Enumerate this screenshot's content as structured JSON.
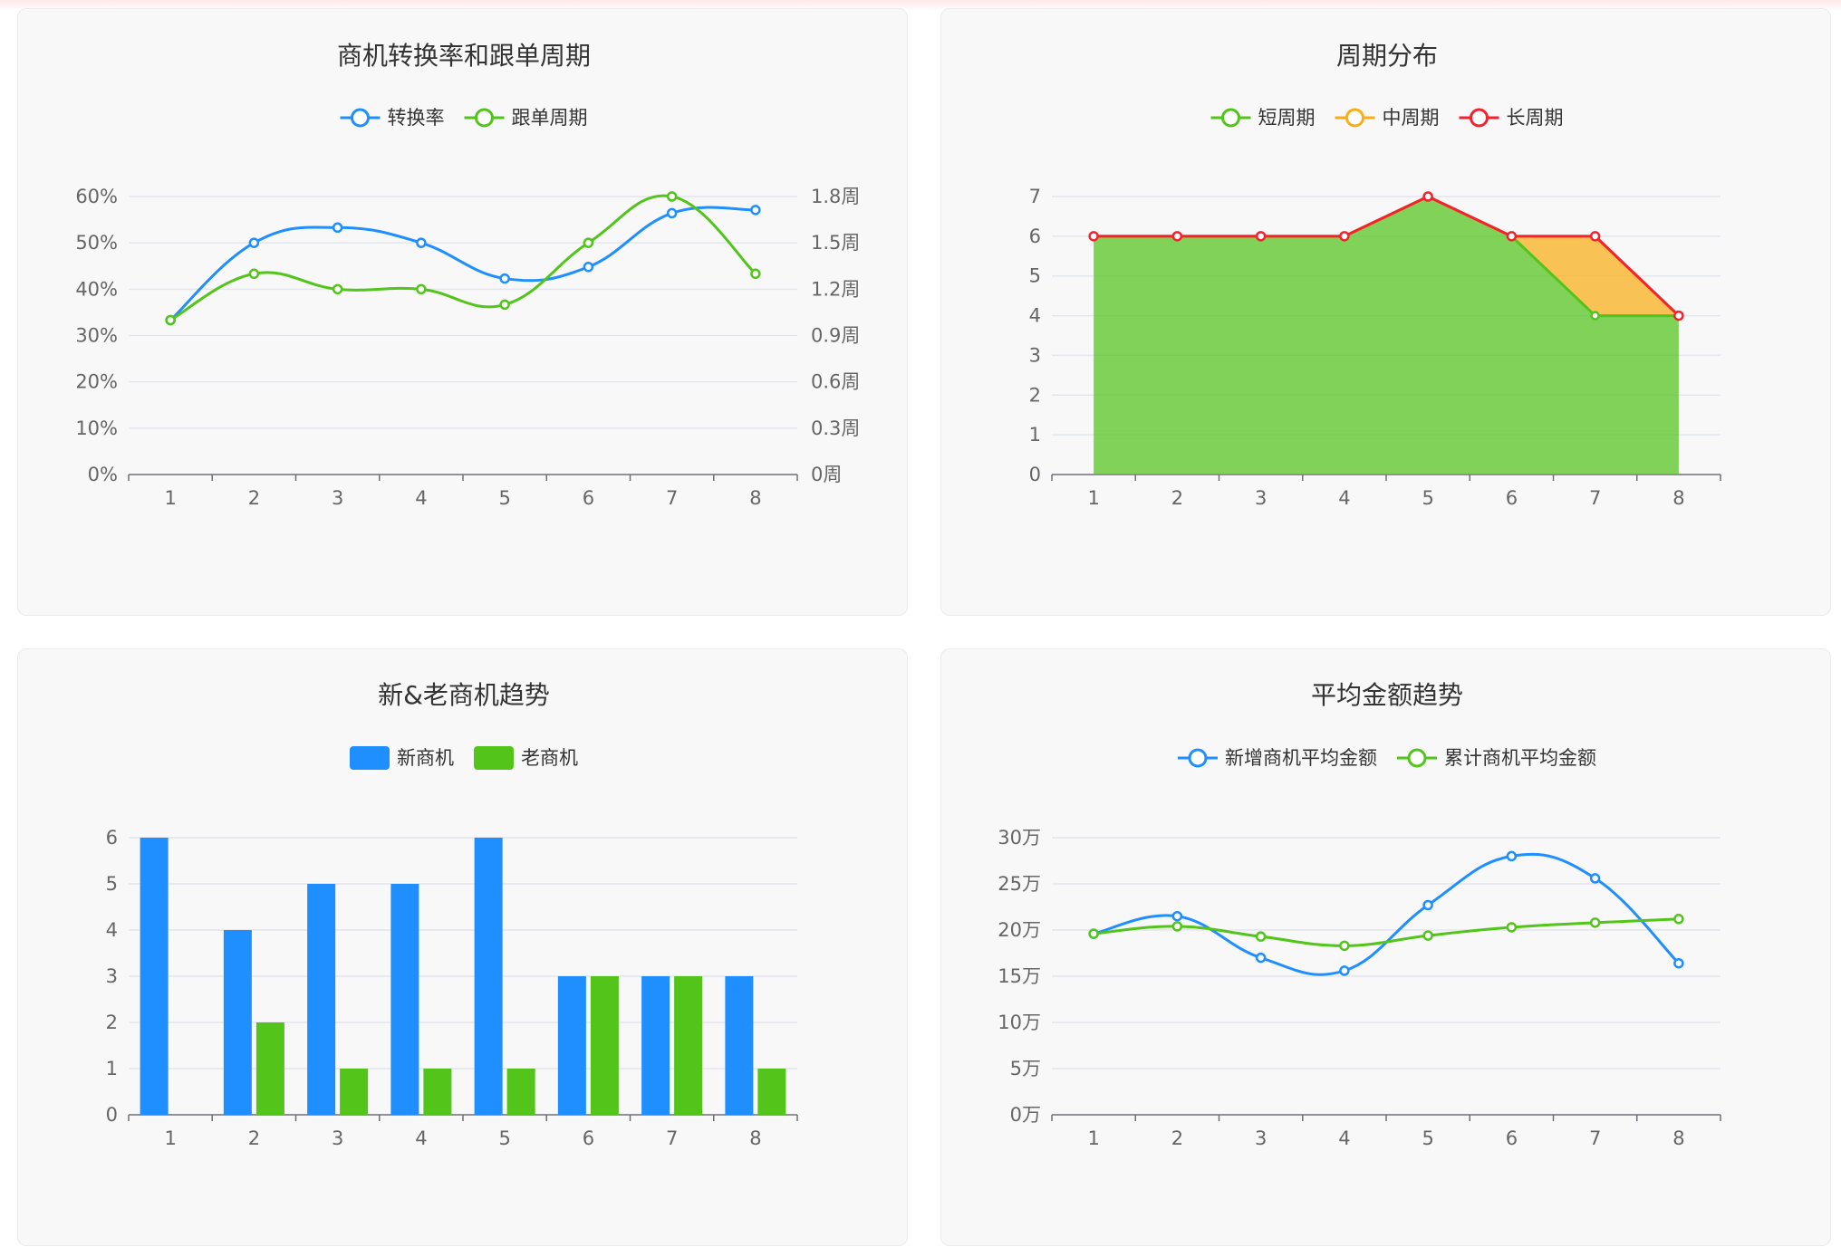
{
  "chart_data": [
    {
      "id": "c1",
      "type": "line",
      "smooth": true,
      "title": "商机转换率和跟单周期",
      "x": [
        "1",
        "2",
        "3",
        "4",
        "5",
        "6",
        "7",
        "8"
      ],
      "y_left": {
        "ticks": [
          "0%",
          "10%",
          "20%",
          "30%",
          "40%",
          "50%",
          "60%"
        ],
        "range": [
          0,
          60
        ]
      },
      "y_right": {
        "ticks": [
          "0周",
          "0.3周",
          "0.6周",
          "0.9周",
          "1.2周",
          "1.5周",
          "1.8周"
        ],
        "range": [
          0,
          1.8
        ]
      },
      "series": [
        {
          "name": "转换率",
          "color": "#1f8fff",
          "axis": "left",
          "values": [
            33.3,
            50,
            53.3,
            50,
            42.3,
            44.8,
            56.4,
            57.1
          ]
        },
        {
          "name": "跟单周期",
          "color": "#52c41a",
          "axis": "right",
          "values": [
            1.0,
            1.3,
            1.2,
            1.2,
            1.1,
            1.5,
            1.8,
            1.3
          ]
        }
      ],
      "legend": "top-center",
      "grid": true
    },
    {
      "id": "c2",
      "type": "area",
      "stacked": true,
      "title": "周期分布",
      "x": [
        "1",
        "2",
        "3",
        "4",
        "5",
        "6",
        "7",
        "8"
      ],
      "y": {
        "ticks": [
          "0",
          "1",
          "2",
          "3",
          "4",
          "5",
          "6",
          "7"
        ],
        "range": [
          0,
          7
        ]
      },
      "series": [
        {
          "name": "短周期",
          "color": "#52c41a",
          "values": [
            6,
            6,
            6,
            6,
            7,
            6,
            4,
            4
          ]
        },
        {
          "name": "中周期",
          "color": "#faad14",
          "values": [
            0,
            0,
            0,
            0,
            0,
            0,
            2,
            0
          ]
        },
        {
          "name": "长周期",
          "color": "#f5222d",
          "values": [
            0,
            0,
            0,
            0,
            0,
            0,
            0,
            0
          ]
        }
      ],
      "legend": "top-center",
      "grid": true
    },
    {
      "id": "c3",
      "type": "bar",
      "title": "新&老商机趋势",
      "x": [
        "1",
        "2",
        "3",
        "4",
        "5",
        "6",
        "7",
        "8"
      ],
      "y": {
        "ticks": [
          "0",
          "1",
          "2",
          "3",
          "4",
          "5",
          "6"
        ],
        "range": [
          0,
          6
        ]
      },
      "series": [
        {
          "name": "新商机",
          "color": "#1f8fff",
          "values": [
            6,
            4,
            5,
            5,
            6,
            3,
            3,
            3
          ]
        },
        {
          "name": "老商机",
          "color": "#52c41a",
          "values": [
            0,
            2,
            1,
            1,
            1,
            3,
            3,
            1
          ]
        }
      ],
      "legend": "top-center",
      "grid": true
    },
    {
      "id": "c4",
      "type": "line",
      "smooth": true,
      "title": "平均金额趋势",
      "x": [
        "1",
        "2",
        "3",
        "4",
        "5",
        "6",
        "7",
        "8"
      ],
      "y": {
        "ticks": [
          "0万",
          "5万",
          "10万",
          "15万",
          "20万",
          "25万",
          "30万"
        ],
        "range": [
          0,
          30
        ]
      },
      "series": [
        {
          "name": "新增商机平均金额",
          "color": "#1f8fff",
          "values": [
            19.6,
            21.5,
            17.0,
            15.6,
            22.7,
            28.0,
            25.6,
            16.4
          ]
        },
        {
          "name": "累计商机平均金额",
          "color": "#52c41a",
          "values": [
            19.6,
            20.4,
            19.3,
            18.3,
            19.4,
            20.3,
            20.8,
            21.2
          ]
        }
      ],
      "legend": "top-center",
      "grid": true
    }
  ]
}
